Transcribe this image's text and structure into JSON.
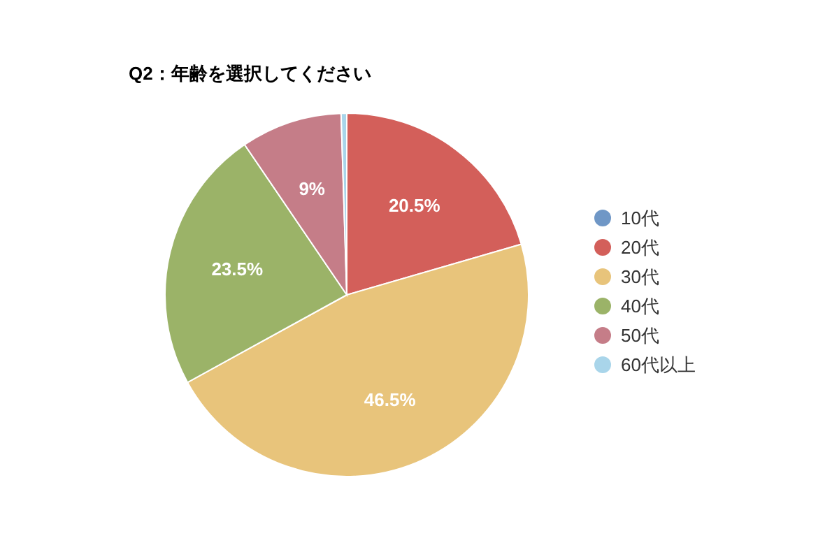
{
  "chart_data": {
    "type": "pie",
    "title": "Q2：年齢を選択してください",
    "categories": [
      "10代",
      "20代",
      "30代",
      "40代",
      "50代",
      "60代以上"
    ],
    "values": [
      0,
      20.5,
      46.5,
      23.5,
      9,
      0.5
    ],
    "value_labels": [
      null,
      "20.5%",
      "46.5%",
      "23.5%",
      "9%",
      null
    ],
    "colors": [
      "#6f97c6",
      "#d35f5a",
      "#e8c47b",
      "#9bb368",
      "#c57d88",
      "#a9d5ea"
    ],
    "legend": "right"
  }
}
